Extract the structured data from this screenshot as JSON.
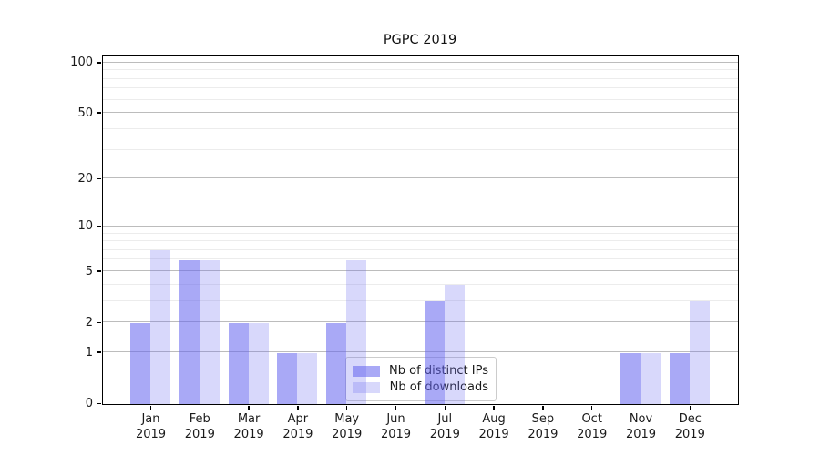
{
  "chart_data": {
    "type": "bar",
    "title": "PGPC 2019",
    "year_label": "2019",
    "categories": [
      "Jan",
      "Feb",
      "Mar",
      "Apr",
      "May",
      "Jun",
      "Jul",
      "Aug",
      "Sep",
      "Oct",
      "Nov",
      "Dec"
    ],
    "series": [
      {
        "name": "Nb of distinct IPs",
        "color": "rgba(98,98,238,0.55)",
        "values": [
          2,
          6,
          2,
          1,
          2,
          0,
          3,
          0,
          0,
          0,
          1,
          1
        ]
      },
      {
        "name": "Nb of downloads",
        "color": "rgba(98,98,238,0.25)",
        "values": [
          7,
          6,
          2,
          1,
          6,
          0,
          4,
          0,
          0,
          0,
          1,
          3
        ]
      }
    ],
    "yscale": "log1p",
    "ylim": [
      0,
      113
    ],
    "yticks": [
      0,
      1,
      2,
      5,
      10,
      20,
      50,
      100
    ],
    "yticks_minor": [
      3,
      4,
      6,
      7,
      8,
      9,
      30,
      40,
      60,
      70,
      80,
      90
    ],
    "grid": true,
    "legend_position": "lower center"
  }
}
